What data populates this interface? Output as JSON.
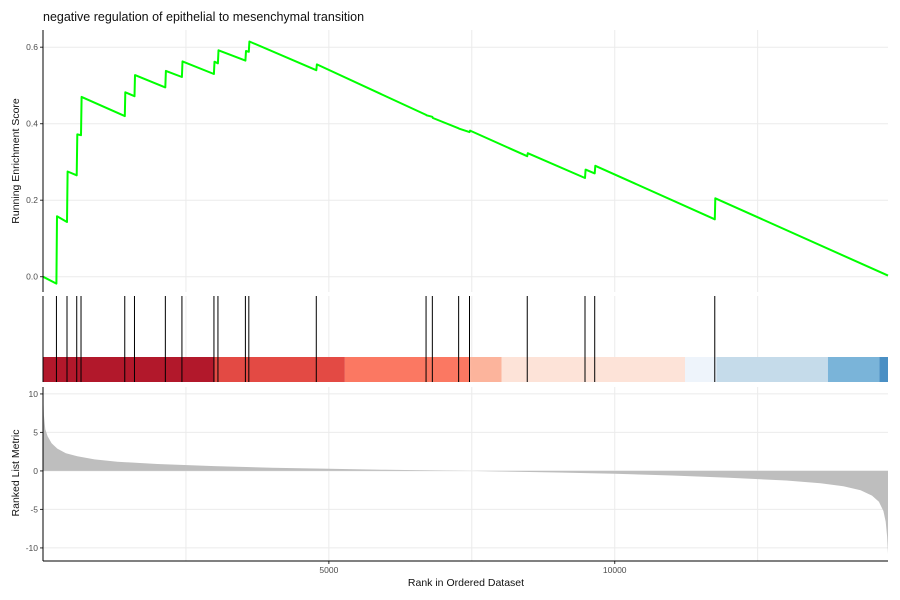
{
  "chart_data": {
    "type": "line",
    "title": "negative regulation of epithelial to mesenchymal transition",
    "xlabel": "Rank in Ordered Dataset",
    "xlim": [
      0,
      14780
    ],
    "grid": true,
    "x_ticks": [
      5000,
      10000
    ],
    "x_gridlines": [
      2500,
      5000,
      7500,
      10000,
      12500
    ],
    "colors": {
      "running_score": "#00ff00",
      "ranked_fill": "#bebebe",
      "hit_line": "#000000",
      "axis": "#000000",
      "grid": "#ebebeb"
    },
    "running_score": {
      "ylabel": "Running Enrichment Score",
      "ylim": [
        -0.04,
        0.645
      ],
      "y_ticks": [
        0.0,
        0.2,
        0.4,
        0.6
      ],
      "points": [
        [
          0,
          0.0
        ],
        [
          235,
          -0.018
        ],
        [
          245,
          0.158
        ],
        [
          420,
          0.143
        ],
        [
          430,
          0.275
        ],
        [
          590,
          0.265
        ],
        [
          600,
          0.372
        ],
        [
          665,
          0.37
        ],
        [
          675,
          0.47
        ],
        [
          1430,
          0.42
        ],
        [
          1440,
          0.482
        ],
        [
          1600,
          0.472
        ],
        [
          1610,
          0.527
        ],
        [
          2140,
          0.495
        ],
        [
          2150,
          0.538
        ],
        [
          2430,
          0.522
        ],
        [
          2440,
          0.563
        ],
        [
          2990,
          0.53
        ],
        [
          3000,
          0.562
        ],
        [
          3060,
          0.558
        ],
        [
          3070,
          0.592
        ],
        [
          3540,
          0.565
        ],
        [
          3550,
          0.59
        ],
        [
          3600,
          0.588
        ],
        [
          3610,
          0.615
        ],
        [
          4780,
          0.54
        ],
        [
          4790,
          0.555
        ],
        [
          6700,
          0.423
        ],
        [
          6710,
          0.422
        ],
        [
          6810,
          0.418
        ],
        [
          6820,
          0.415
        ],
        [
          7270,
          0.388
        ],
        [
          7280,
          0.387
        ],
        [
          7460,
          0.378
        ],
        [
          7470,
          0.382
        ],
        [
          8470,
          0.315
        ],
        [
          8480,
          0.323
        ],
        [
          9480,
          0.258
        ],
        [
          9490,
          0.28
        ],
        [
          9650,
          0.27
        ],
        [
          9660,
          0.29
        ],
        [
          11750,
          0.15
        ],
        [
          11760,
          0.205
        ],
        [
          14780,
          0.003
        ]
      ]
    },
    "gene_hits": [
      0,
      235,
      420,
      590,
      665,
      1430,
      1600,
      2140,
      2430,
      2990,
      3060,
      3540,
      3600,
      4780,
      6700,
      6810,
      7270,
      7460,
      8470,
      9480,
      9650,
      11750
    ],
    "rank_bands": [
      {
        "x0": 0,
        "x1": 3000,
        "color": "#b2182b"
      },
      {
        "x0": 3000,
        "x1": 5280,
        "color": "#e34a44"
      },
      {
        "x0": 5280,
        "x1": 7470,
        "color": "#fb7862"
      },
      {
        "x0": 7470,
        "x1": 8020,
        "color": "#fcb49c"
      },
      {
        "x0": 8020,
        "x1": 11230,
        "color": "#fde3d8"
      },
      {
        "x0": 11230,
        "x1": 11780,
        "color": "#eef4fb"
      },
      {
        "x0": 11780,
        "x1": 13730,
        "color": "#c5dbea"
      },
      {
        "x0": 13730,
        "x1": 14630,
        "color": "#7ab4d9"
      },
      {
        "x0": 14630,
        "x1": 14780,
        "color": "#4a8fc4"
      }
    ],
    "ranked_metric": {
      "ylabel": "Ranked List Metric",
      "ylim": [
        -11.7,
        10.9
      ],
      "y_ticks": [
        -10,
        -5,
        0,
        5,
        10
      ],
      "profile": [
        [
          0,
          10.5
        ],
        [
          15,
          7.2
        ],
        [
          40,
          5.4
        ],
        [
          80,
          4.5
        ],
        [
          150,
          3.6
        ],
        [
          250,
          2.9
        ],
        [
          400,
          2.3
        ],
        [
          600,
          1.9
        ],
        [
          900,
          1.5
        ],
        [
          1300,
          1.2
        ],
        [
          2000,
          0.9
        ],
        [
          3000,
          0.62
        ],
        [
          4000,
          0.42
        ],
        [
          5000,
          0.28
        ],
        [
          6000,
          0.15
        ],
        [
          7000,
          0.05
        ],
        [
          7500,
          0.0
        ],
        [
          8000,
          -0.07
        ],
        [
          9000,
          -0.2
        ],
        [
          10000,
          -0.38
        ],
        [
          11000,
          -0.6
        ],
        [
          12000,
          -0.88
        ],
        [
          13000,
          -1.25
        ],
        [
          13600,
          -1.6
        ],
        [
          14000,
          -2.0
        ],
        [
          14300,
          -2.5
        ],
        [
          14500,
          -3.2
        ],
        [
          14620,
          -4.0
        ],
        [
          14700,
          -5.2
        ],
        [
          14740,
          -6.6
        ],
        [
          14765,
          -8.5
        ],
        [
          14780,
          -10.8
        ]
      ]
    }
  }
}
